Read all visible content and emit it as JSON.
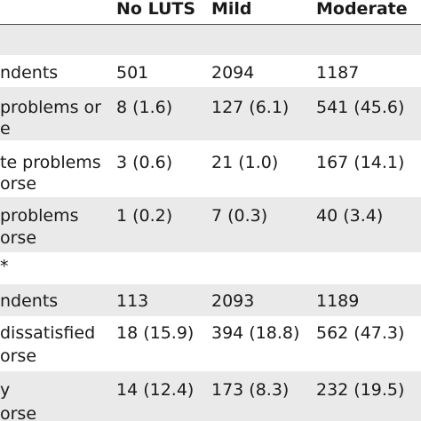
{
  "header": {
    "col1": "No LUTS",
    "col2": "Mild",
    "col3": "Moderate"
  },
  "rows": [
    {
      "label": [
        "ndents"
      ],
      "c1": "501",
      "c2": "2094",
      "c3": "1187"
    },
    {
      "label": [
        "problems or",
        "e"
      ],
      "c1": "8 (1.6)",
      "c2": "127 (6.1)",
      "c3": "541 (45.6)"
    },
    {
      "label": [
        "te problems",
        "orse"
      ],
      "c1": "3 (0.6)",
      "c2": "21 (1.0)",
      "c3": "167 (14.1)"
    },
    {
      "label": [
        "problems",
        "orse"
      ],
      "c1": "1 (0.2)",
      "c2": "7 (0.3)",
      "c3": "40 (3.4)"
    },
    {
      "label": [
        "*"
      ]
    },
    {
      "label": [
        "ndents"
      ],
      "c1": "113",
      "c2": "2093",
      "c3": "1189"
    },
    {
      "label": [
        "dissatisfied",
        "orse"
      ],
      "c1": "18 (15.9)",
      "c2": "394 (18.8)",
      "c3": "562 (47.3)"
    },
    {
      "label": [
        "y",
        "orse"
      ],
      "c1": "14 (12.4)",
      "c2": "173 (8.3)",
      "c3": "232 (19.5)"
    }
  ]
}
